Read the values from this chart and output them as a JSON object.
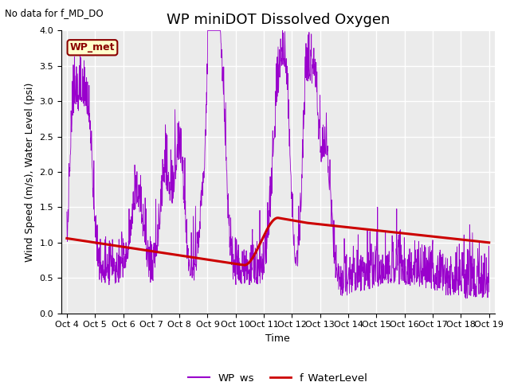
{
  "title": "WP miniDOT Dissolved Oxygen",
  "no_data_text": "No data for f_MD_DO",
  "ylabel": "Wind Speed (m/s), Water Level (psi)",
  "xlabel": "Time",
  "ylim": [
    0.0,
    4.0
  ],
  "yticks": [
    0.0,
    0.5,
    1.0,
    1.5,
    2.0,
    2.5,
    3.0,
    3.5,
    4.0
  ],
  "legend_box_label": "WP_met",
  "legend_box_facecolor": "#ffffcc",
  "legend_box_edgecolor": "#8B0000",
  "legend_entries": [
    "WP_ws",
    "f_WaterLevel"
  ],
  "legend_colors": [
    "#9900cc",
    "#cc0000"
  ],
  "wp_ws_color": "#9900cc",
  "f_wl_color": "#cc0000",
  "plot_bg_color": "#ebebeb",
  "fig_bg_color": "#ffffff",
  "title_fontsize": 13,
  "axis_fontsize": 9,
  "tick_fontsize": 8,
  "figwidth": 6.4,
  "figheight": 4.8,
  "dpi": 100
}
